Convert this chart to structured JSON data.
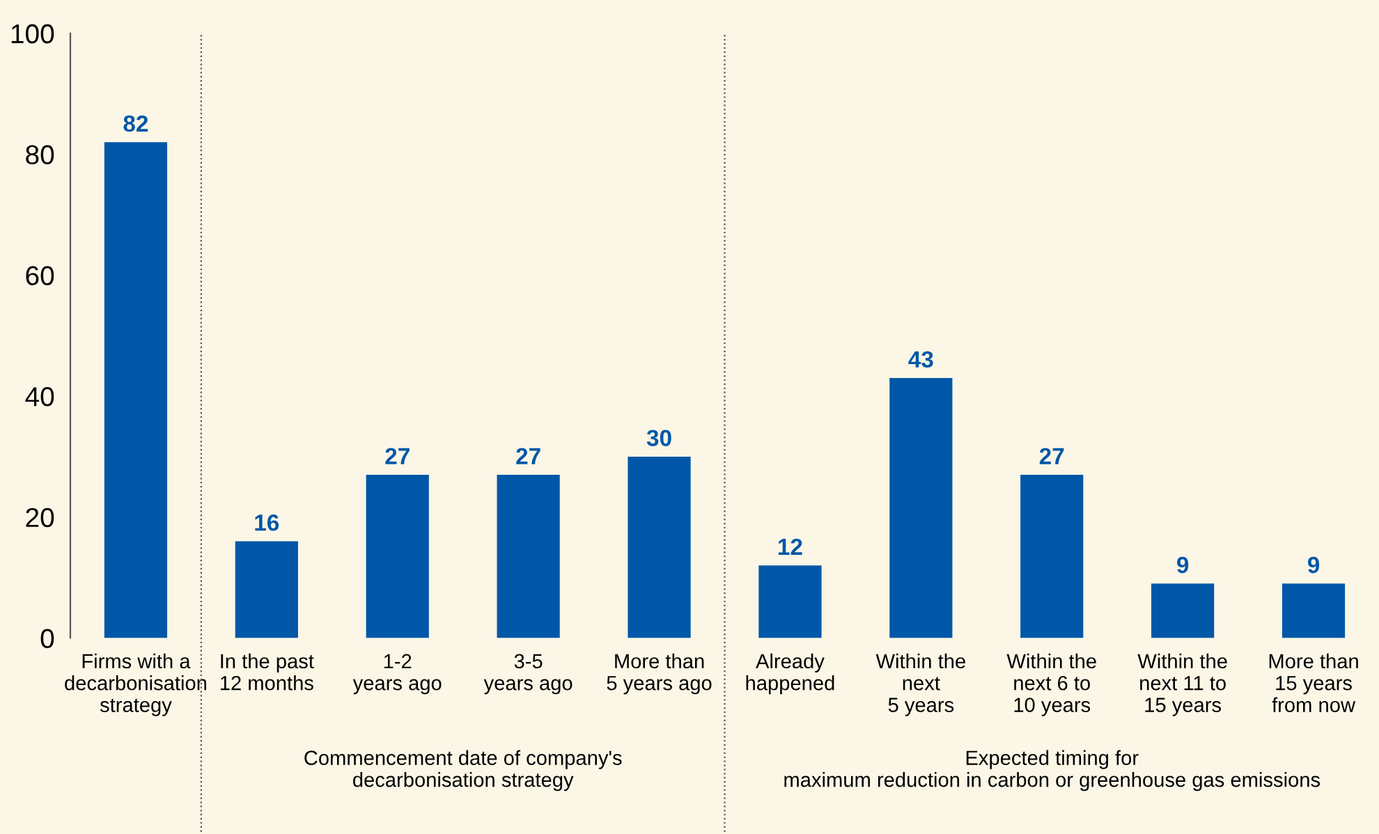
{
  "chart_data": {
    "type": "bar",
    "categories": [
      "Firms with a\ndecarbonisation\nstrategy",
      "In the past\n12 months",
      "1-2\nyears ago",
      "3-5\nyears ago",
      "More than\n5 years ago",
      "Already\nhappened",
      "Within the\nnext\n5 years",
      "Within the\nnext 6 to\n10 years",
      "Within the\nnext 11 to\n15 years",
      "More than\n15 years\nfrom now"
    ],
    "values": [
      82,
      16,
      27,
      27,
      30,
      12,
      43,
      27,
      9,
      9
    ],
    "color": "#0057a8",
    "data_labels": true,
    "ylim": [
      0,
      100
    ],
    "yticks": [
      0,
      20,
      40,
      60,
      80,
      100
    ],
    "grid": false,
    "annotations": [
      "Commencement date of company's\ndecarbonisation strategy",
      "Expected timing for\nmaximum reduction in carbon or greenhouse gas emissions"
    ]
  }
}
